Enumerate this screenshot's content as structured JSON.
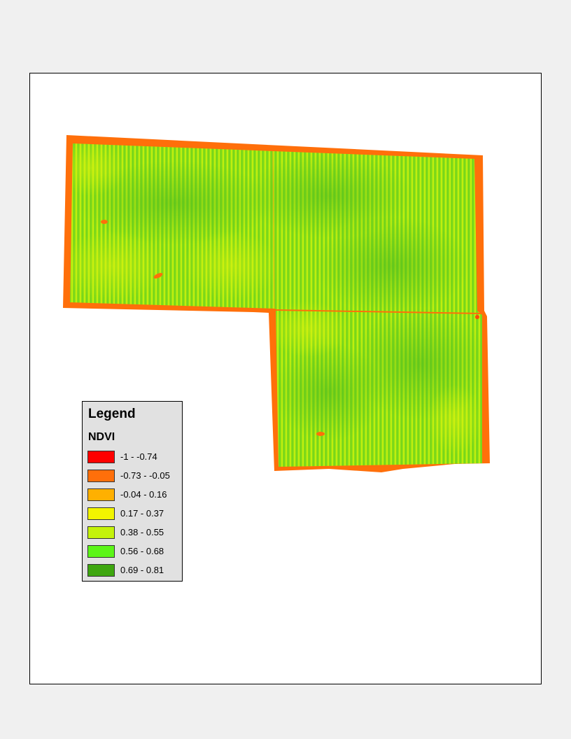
{
  "legend": {
    "title": "Legend",
    "layer": "NDVI",
    "classes": [
      {
        "label": "-1 - -0.74",
        "color": "#ff0000"
      },
      {
        "label": "-0.73 - -0.05",
        "color": "#ff6f0a"
      },
      {
        "label": "-0.04 - 0.16",
        "color": "#ffb000"
      },
      {
        "label": "0.17 - 0.37",
        "color": "#f2f500"
      },
      {
        "label": "0.38 - 0.55",
        "color": "#c4f20a"
      },
      {
        "label": "0.56 - 0.68",
        "color": "#5cf518"
      },
      {
        "label": "0.69 - 0.81",
        "color": "#3ea60f"
      }
    ]
  },
  "colors": {
    "boundary": "#ff6f0a",
    "field_base": "#96e614",
    "field_dark": "#5cc41f",
    "field_light": "#c8f00f",
    "background": "#f0f0f0",
    "frame": "#ffffff"
  }
}
